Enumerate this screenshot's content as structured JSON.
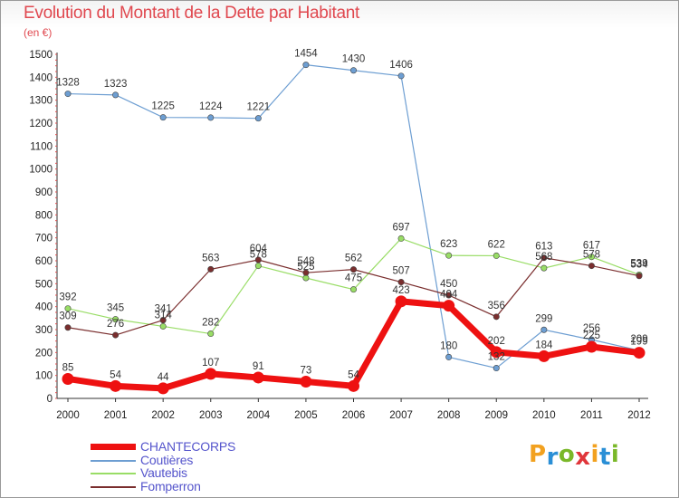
{
  "title": "Evolution du Montant de la Dette par Habitant",
  "subtitle": "(en €)",
  "logo": {
    "letters": [
      "P",
      "r",
      "o",
      "x",
      "i",
      "t",
      "i"
    ],
    "colors": [
      "#f2a11f",
      "#2a8fd6",
      "#7ab829",
      "#e0363b",
      "#f2a11f",
      "#2a8fd6",
      "#7ab829"
    ]
  },
  "chart_data": {
    "type": "line",
    "x": [
      "2000",
      "2001",
      "2002",
      "2003",
      "2004",
      "2005",
      "2006",
      "2007",
      "2008",
      "2009",
      "2010",
      "2011",
      "2012"
    ],
    "ylim": [
      0,
      1500
    ],
    "yticks": [
      0,
      100,
      200,
      300,
      400,
      500,
      600,
      700,
      800,
      900,
      1000,
      1100,
      1200,
      1300,
      1400,
      1500
    ],
    "grid": false,
    "legend_position": "bottom-left",
    "series": [
      {
        "name": "CHANTECORPS",
        "values": [
          85,
          54,
          44,
          107,
          91,
          73,
          54,
          423,
          404,
          202,
          184,
          225,
          199
        ],
        "labels": [
          "85",
          "54",
          "44",
          "107",
          "91",
          "73",
          "54",
          "423",
          "404",
          "202",
          "184",
          "225",
          "199"
        ],
        "color": "#ee1111",
        "legend_color": "#5555cc"
      },
      {
        "name": "Coutières",
        "values": [
          1328,
          1323,
          1225,
          1224,
          1221,
          1454,
          1430,
          1406,
          180,
          132,
          299,
          256,
          209
        ],
        "labels": [
          "1328",
          "1323",
          "1225",
          "1224",
          "1221",
          "1454",
          "1430",
          "1406",
          "180",
          "132",
          "299",
          "256",
          "209"
        ],
        "color": "#6d9ed2",
        "legend_color": "#5555cc"
      },
      {
        "name": "Vautebis",
        "values": [
          392,
          345,
          314,
          282,
          578,
          525,
          475,
          697,
          623,
          622,
          568,
          617,
          539
        ],
        "labels": [
          "392",
          "345",
          "314",
          "282",
          "578",
          "525",
          "475",
          "697",
          "623",
          "622",
          "568",
          "617",
          "539"
        ],
        "color": "#99dd66",
        "legend_color": "#5555cc"
      },
      {
        "name": "Fomperron",
        "values": [
          309,
          276,
          341,
          563,
          604,
          548,
          562,
          507,
          450,
          356,
          613,
          578,
          534
        ],
        "labels": [
          "309",
          "276",
          "341",
          "563",
          "604",
          "548",
          "562",
          "507",
          "450",
          "356",
          "613",
          "578",
          "534"
        ],
        "color": "#7a2e2e",
        "legend_color": "#5555cc"
      }
    ]
  }
}
